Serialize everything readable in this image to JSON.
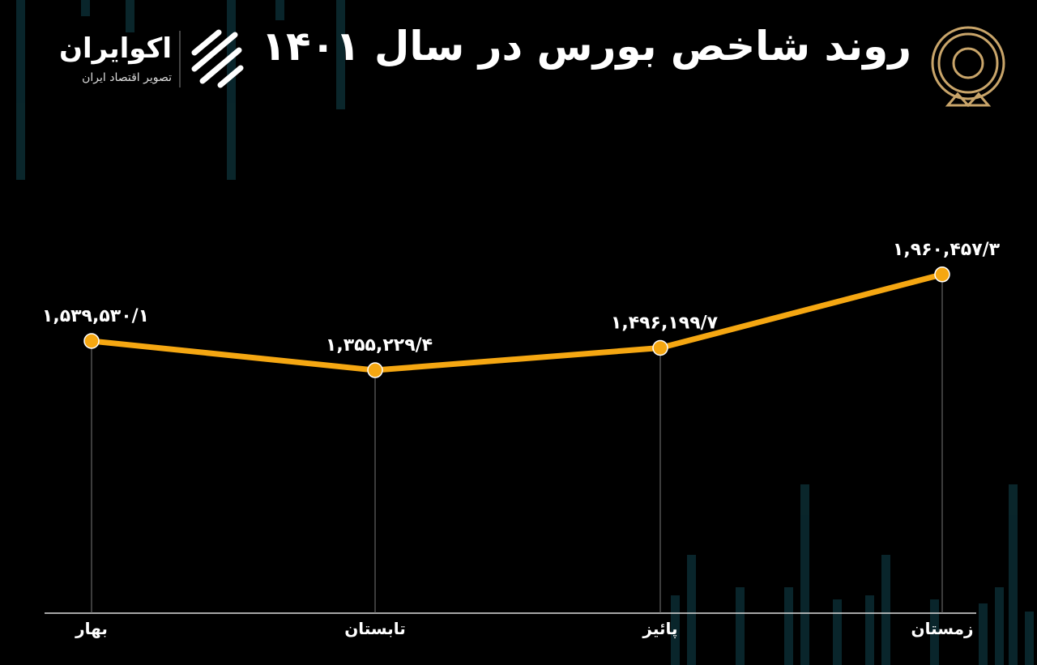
{
  "header": {
    "title": "روند شاخص بورس در سال ۱۴۰۱",
    "brand": "اکوایران",
    "tagline": "تصویر اقتصاد ایران"
  },
  "chart_data": {
    "type": "line",
    "categories": [
      "بهار",
      "تابستان",
      "پائیز",
      "زمستان"
    ],
    "values": [
      1539530.1,
      1355229.4,
      1496199.7,
      1960457.3
    ],
    "value_labels": [
      "۱,۵۳۹,۵۳۰/۱",
      "۱,۳۵۵,۲۲۹/۴",
      "۱,۴۹۶,۱۹۹/۷",
      "۱,۹۶۰,۴۵۷/۳"
    ],
    "color": "#f5a712",
    "ylim": [
      -180000,
      2200000
    ]
  }
}
